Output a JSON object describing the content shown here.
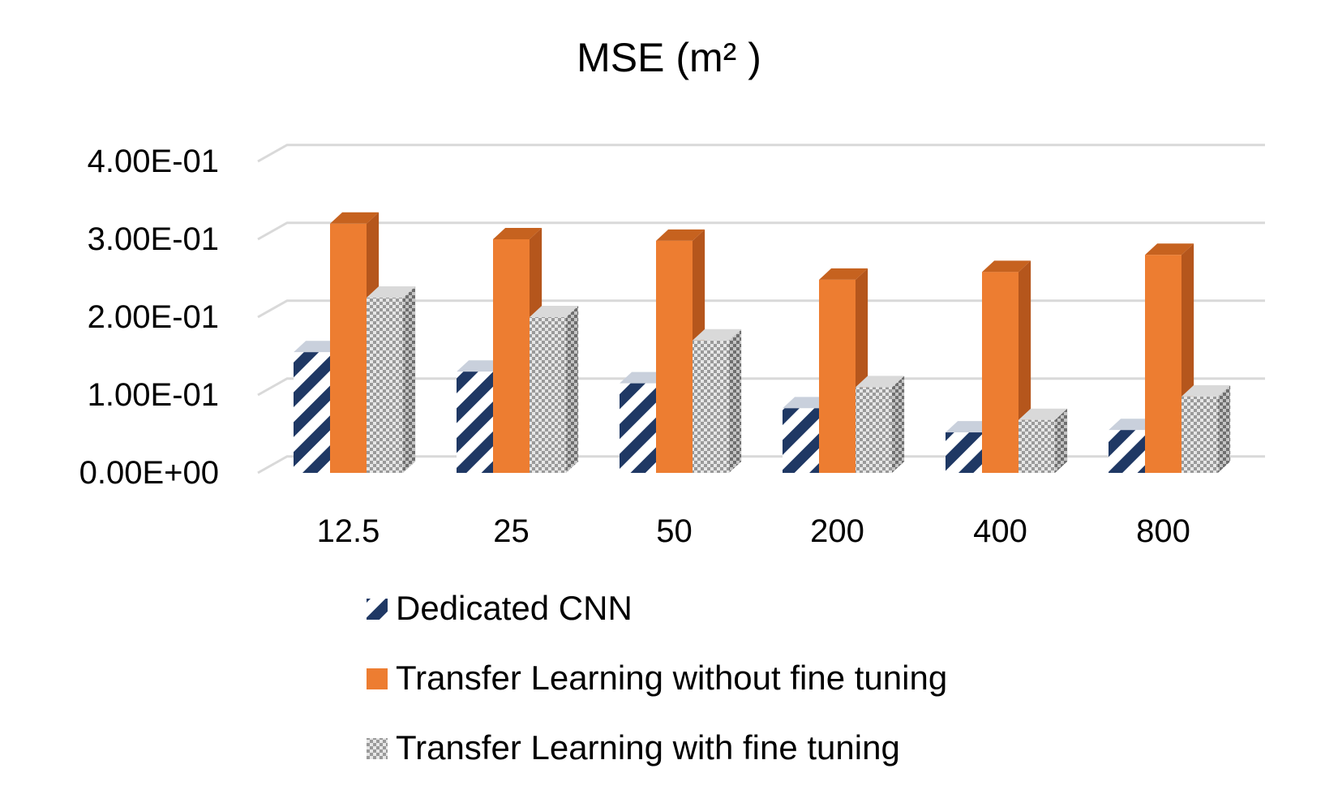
{
  "chart_data": {
    "type": "bar",
    "title": "MSE (m² )",
    "categories": [
      "12.5",
      "25",
      "50",
      "200",
      "400",
      "800"
    ],
    "ylim": [
      0,
      0.4
    ],
    "y_ticks": [
      {
        "value": 0.0,
        "label": "0.00E+00"
      },
      {
        "value": 0.1,
        "label": "1.00E-01"
      },
      {
        "value": 0.2,
        "label": "2.00E-01"
      },
      {
        "value": 0.3,
        "label": "3.00E-01"
      },
      {
        "value": 0.4,
        "label": "4.00E-01"
      }
    ],
    "grid": true,
    "legend_position": "bottom",
    "series": [
      {
        "name": "Dedicated CNN",
        "values": [
          0.155,
          0.13,
          0.115,
          0.083,
          0.052,
          0.055
        ],
        "color": "#1f3864",
        "pattern": "diagonal-stripes"
      },
      {
        "name": "Transfer Learning without fine tuning",
        "values": [
          0.32,
          0.3,
          0.298,
          0.248,
          0.258,
          0.28
        ],
        "color": "#ed7d31",
        "pattern": "solid"
      },
      {
        "name": "Transfer Learning with fine tuning",
        "values": [
          0.225,
          0.2,
          0.17,
          0.11,
          0.068,
          0.098
        ],
        "color": "#a5a5a5",
        "pattern": "checker"
      }
    ]
  }
}
